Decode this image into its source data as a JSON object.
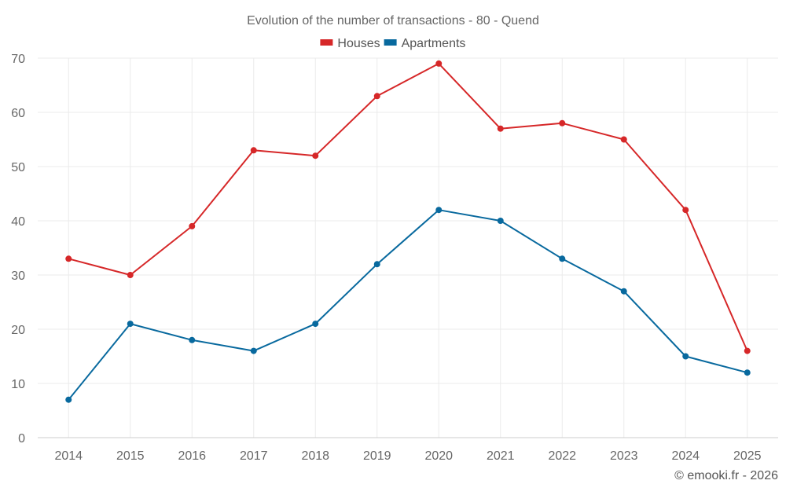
{
  "chart_data": {
    "type": "line",
    "title": "Evolution of the number of transactions - 80 - Quend",
    "categories": [
      "2014",
      "2015",
      "2016",
      "2017",
      "2018",
      "2019",
      "2020",
      "2021",
      "2022",
      "2023",
      "2024",
      "2025"
    ],
    "series": [
      {
        "name": "Houses",
        "color": "#d62728",
        "values": [
          33,
          30,
          39,
          53,
          52,
          63,
          69,
          57,
          58,
          55,
          42,
          16
        ]
      },
      {
        "name": "Apartments",
        "color": "#08699e",
        "values": [
          7,
          21,
          18,
          16,
          21,
          32,
          42,
          40,
          33,
          27,
          15,
          12
        ]
      }
    ],
    "ylim": [
      0,
      70
    ],
    "yticks": [
      0,
      10,
      20,
      30,
      40,
      50,
      60,
      70
    ],
    "xlabel": "",
    "ylabel": "",
    "grid": true,
    "legend": "top-center"
  },
  "footer": {
    "credit": "© emooki.fr - 2026"
  },
  "colors": {
    "grid": "#ebebeb",
    "axis": "#cccccc",
    "text": "#666666"
  }
}
